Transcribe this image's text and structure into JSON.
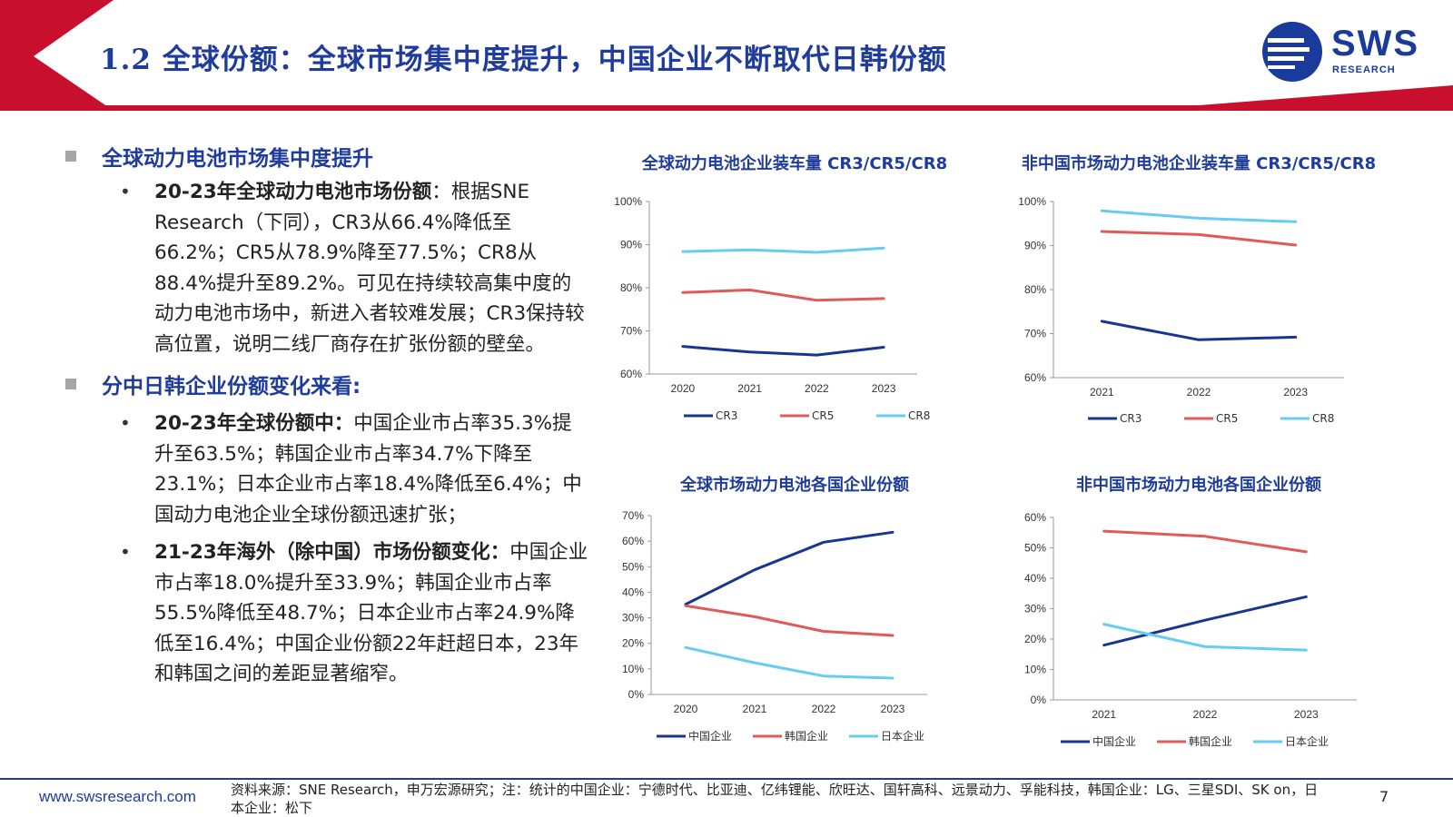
{
  "header": {
    "title": "1.2 全球份额：全球市场集中度提升，中国企业不断取代日韩份额",
    "logo_text": "SWS",
    "logo_sub": "RESEARCH"
  },
  "left": {
    "section1_head": "全球动力电池市场集中度提升",
    "s1_b1_bold": "20-23年全球动力电池市场份额",
    "s1_b1_text": "：根据SNE Research（下同），CR3从66.4%降低至66.2%；CR5从78.9%降至77.5%；CR8从88.4%提升至89.2%。可见在持续较高集中度的动力电池市场中，新进入者较难发展；CR3保持较高位置，说明二线厂商存在扩张份额的壁垒。",
    "section2_head": "分中日韩企业份额变化来看:",
    "s2_b1_bold": "20-23年全球份额中：",
    "s2_b1_text": "中国企业市占率35.3%提升至63.5%；韩国企业市占率34.7%下降至23.1%；日本企业市占率18.4%降低至6.4%；中国动力电池企业全球份额迅速扩张；",
    "s2_b2_bold": "21-23年海外（除中国）市场份额变化：",
    "s2_b2_text": "中国企业市占率18.0%提升至33.9%；韩国企业市占率55.5%降低至48.7%；日本企业市占率24.9%降低至16.4%；中国企业份额22年赶超日本，23年和韩国之间的差距显著缩窄。",
    "bullet_glyph": "•"
  },
  "chart_data": [
    {
      "type": "line",
      "title": "全球动力电池企业装车量 CR3/CR5/CR8",
      "x": [
        "2020",
        "2021",
        "2022",
        "2023"
      ],
      "series": [
        {
          "name": "CR3",
          "color": "#1a3591",
          "values": [
            66.4,
            65.1,
            64.4,
            66.2
          ]
        },
        {
          "name": "CR5",
          "color": "#e05a5a",
          "values": [
            78.9,
            79.5,
            77.1,
            77.5
          ]
        },
        {
          "name": "CR8",
          "color": "#66ccf2",
          "values": [
            88.4,
            88.8,
            88.2,
            89.2
          ]
        }
      ],
      "ylim": [
        60,
        100
      ],
      "yticks": [
        "60%",
        "70%",
        "80%",
        "90%",
        "100%"
      ],
      "legend": "bottom"
    },
    {
      "type": "line",
      "title": "非中国市场动力电池企业装车量 CR3/CR5/CR8",
      "x": [
        "2021",
        "2022",
        "2023"
      ],
      "series": [
        {
          "name": "CR3",
          "color": "#1a3591",
          "values": [
            72.8,
            68.6,
            69.2
          ]
        },
        {
          "name": "CR5",
          "color": "#e05a5a",
          "values": [
            93.2,
            92.5,
            90.1
          ]
        },
        {
          "name": "CR8",
          "color": "#66ccf2",
          "values": [
            97.9,
            96.2,
            95.4
          ]
        }
      ],
      "ylim": [
        60,
        100
      ],
      "yticks": [
        "60%",
        "70%",
        "80%",
        "90%",
        "100%"
      ],
      "legend": "bottom"
    },
    {
      "type": "line",
      "title": "全球市场动力电池各国企业份额",
      "x": [
        "2020",
        "2021",
        "2022",
        "2023"
      ],
      "series": [
        {
          "name": "中国企业",
          "color": "#1a3591",
          "values": [
            35.3,
            48.8,
            59.6,
            63.5
          ]
        },
        {
          "name": "韩国企业",
          "color": "#e05a5a",
          "values": [
            34.7,
            30.4,
            24.7,
            23.1
          ]
        },
        {
          "name": "日本企业",
          "color": "#66ccf2",
          "values": [
            18.4,
            12.4,
            7.2,
            6.4
          ]
        }
      ],
      "ylim": [
        0,
        70
      ],
      "yticks": [
        "0%",
        "10%",
        "20%",
        "30%",
        "40%",
        "50%",
        "60%",
        "70%"
      ],
      "legend": "bottom"
    },
    {
      "type": "line",
      "title": "非中国市场动力电池各国企业份额",
      "x": [
        "2021",
        "2022",
        "2023"
      ],
      "series": [
        {
          "name": "中国企业",
          "color": "#1a3591",
          "values": [
            18.0,
            26.2,
            33.9
          ]
        },
        {
          "name": "韩国企业",
          "color": "#e05a5a",
          "values": [
            55.5,
            53.8,
            48.7
          ]
        },
        {
          "name": "日本企业",
          "color": "#66ccf2",
          "values": [
            24.9,
            17.5,
            16.4
          ]
        }
      ],
      "ylim": [
        0,
        60
      ],
      "yticks": [
        "0%",
        "10%",
        "20%",
        "30%",
        "40%",
        "50%",
        "60%"
      ],
      "legend": "bottom"
    }
  ],
  "footer": {
    "url": "www.swsresearch.com",
    "source": "资料来源：SNE Research，申万宏源研究；注：统计的中国企业：宁德时代、比亚迪、亿纬锂能、欣旺达、国轩高科、远景动力、孚能科技，韩国企业：LG、三星SDI、SK on，日本企业：松下",
    "page": "7"
  },
  "colors": {
    "brand_blue": "#1f3c9c",
    "header_red": "#c8102e"
  }
}
